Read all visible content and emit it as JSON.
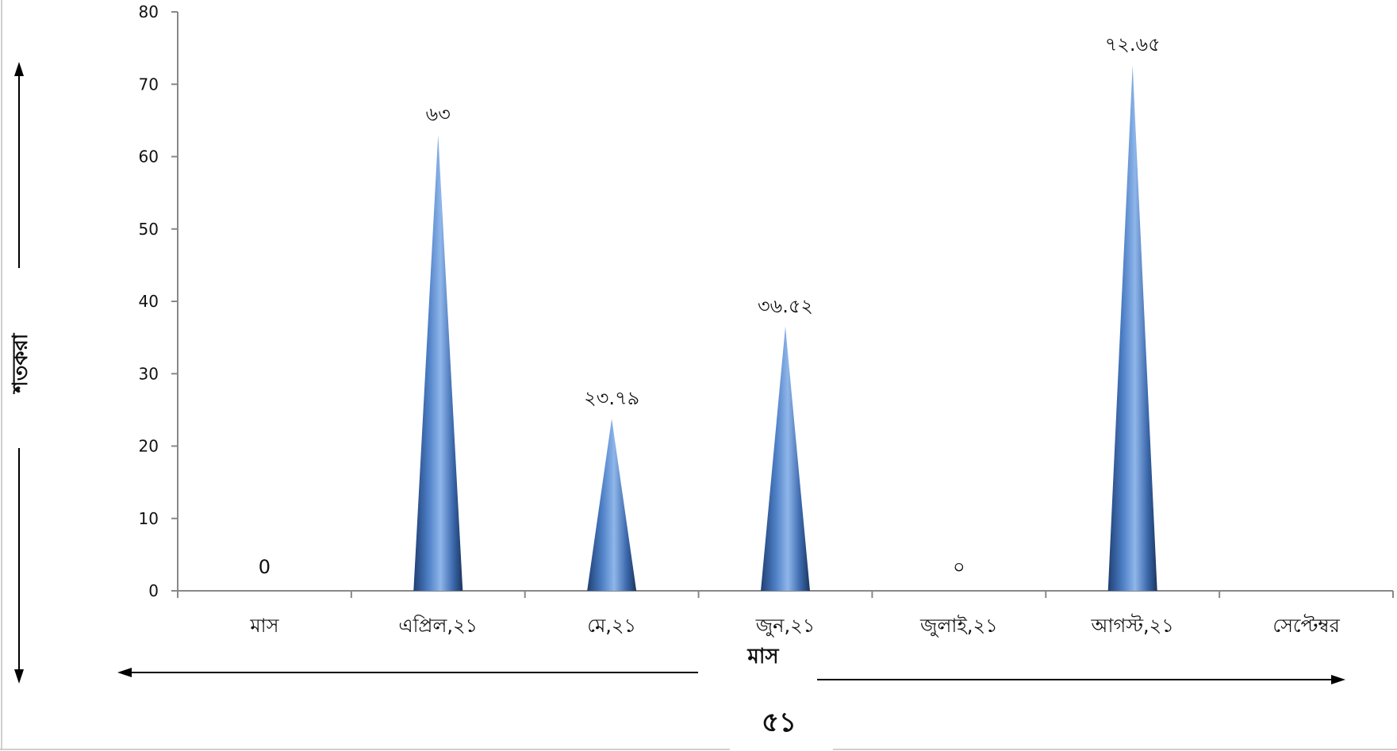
{
  "chart_data": {
    "type": "bar",
    "bar_shape": "cone",
    "title": "",
    "xlabel": "মাস",
    "ylabel": "শতকরা",
    "ylim": [
      0,
      80
    ],
    "yticks": [
      "0",
      "10",
      "20",
      "30",
      "40",
      "50",
      "60",
      "70",
      "80"
    ],
    "categories": [
      "মাস",
      "এপ্রিল,২১",
      "মে,২১",
      "জুন,২১",
      "জুলাই,২১",
      "আগস্ট,২১",
      "সেপ্টেম্বর"
    ],
    "values": [
      0,
      63,
      23.79,
      36.52,
      0,
      72.65,
      null
    ],
    "data_labels": [
      "0",
      "৬৩",
      "২৩.৭৯",
      "৩৬.৫২",
      "০",
      "৭২.৬৫",
      ""
    ],
    "bar_color": "#4a7cc4",
    "grid": false,
    "legend": "none"
  },
  "page_number": "৫১"
}
